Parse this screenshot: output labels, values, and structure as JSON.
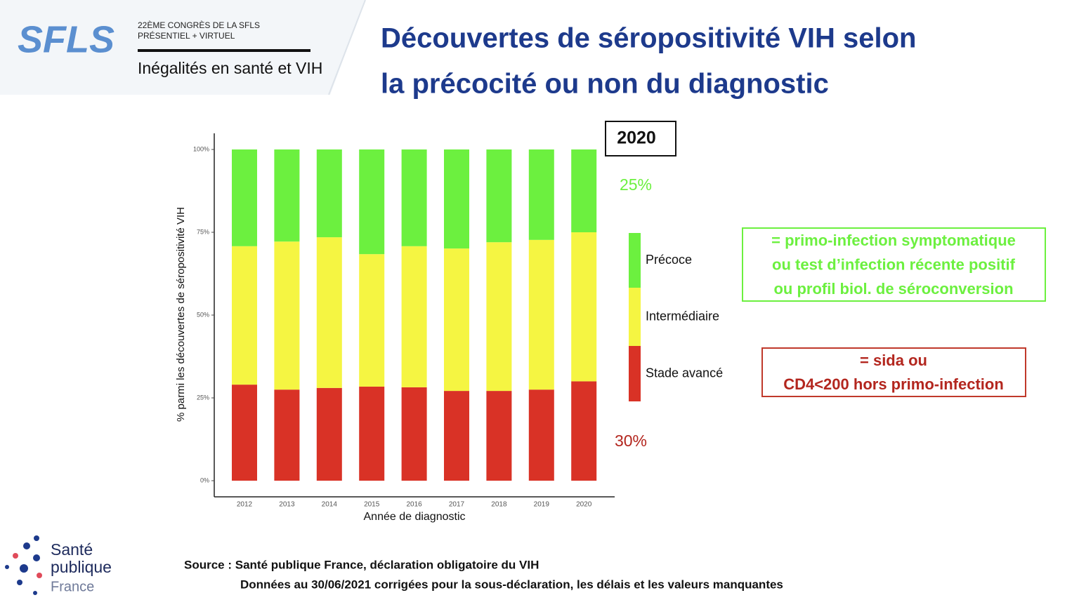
{
  "header": {
    "logo": "SFLS",
    "congress": [
      "22ÈME CONGRÈS DE LA SFLS",
      "PRÉSENTIEL + VIRTUEL"
    ],
    "theme": "Inégalités en santé et VIH"
  },
  "slide_title": [
    "Découvertes de séropositivité VIH selon",
    "la précocité ou non du diagnostic"
  ],
  "chart_data": {
    "type": "stacked_bar",
    "categories": [
      "2012",
      "2013",
      "2014",
      "2015",
      "2016",
      "2017",
      "2018",
      "2019",
      "2020"
    ],
    "series": [
      {
        "name": "Stade avancé",
        "color": "#d93226",
        "values": [
          29,
          27.5,
          28,
          28.4,
          28.2,
          27.1,
          27.1,
          27.5,
          30
        ]
      },
      {
        "name": "Intermédiaire",
        "color": "#f5f542",
        "values": [
          41.8,
          44.7,
          45.5,
          40,
          42.6,
          43,
          44.9,
          45.2,
          45
        ]
      },
      {
        "name": "Précoce",
        "color": "#6cf03f",
        "values": [
          29.2,
          27.8,
          26.5,
          31.6,
          29.2,
          29.9,
          28,
          27.3,
          25
        ]
      }
    ],
    "ylim": [
      0,
      100
    ],
    "yticks": [
      {
        "value": 0,
        "label": "0%"
      },
      {
        "value": 25,
        "label": "25%"
      },
      {
        "value": 50,
        "label": "50%"
      },
      {
        "value": 75,
        "label": "75%"
      },
      {
        "value": 100,
        "label": "100%"
      }
    ],
    "ylabel": "% parmi les découvertes de séropositivité VIH",
    "xlabel": "Année de diagnostic",
    "annotations": [
      {
        "lines": [
          "2020"
        ]
      },
      {
        "lines": [
          "25%"
        ]
      },
      {
        "lines": [
          "30%"
        ]
      },
      {
        "lines": [
          "= primo-infection symptomatique",
          "ou test d’infection récente positif",
          "ou profil biol. de séroconversion"
        ]
      },
      {
        "lines": [
          "= sida ou",
          "CD4<200 hors primo-infection"
        ]
      }
    ]
  },
  "footer": {
    "logo": [
      "Santé",
      "publique",
      "France"
    ],
    "source": [
      "Source : Santé publique France, déclaration obligatoire du VIH",
      "Données au 30/06/2021 corrigées pour la sous-déclaration, les délais et les valeurs manquantes"
    ]
  }
}
